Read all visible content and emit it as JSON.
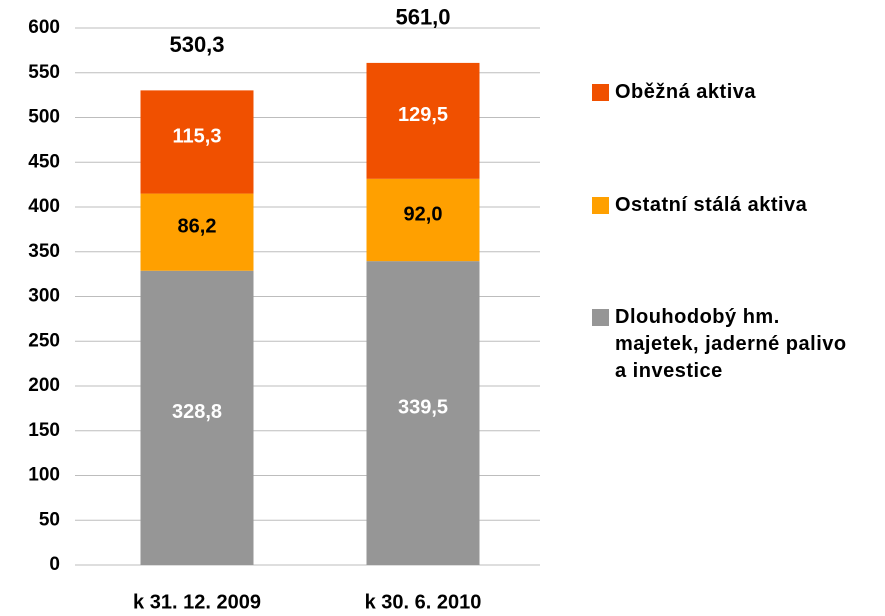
{
  "chart_data": {
    "type": "stacked_bar",
    "categories": [
      "k 31. 12. 2009",
      "k 30. 6. 2010"
    ],
    "series": [
      {
        "name": "Dlouhodobý hm. majetek, jaderné palivo a investice",
        "color": "#969696",
        "label_color": "#ffffff",
        "values": [
          328.8,
          339.5
        ],
        "value_labels": [
          "328,8",
          "339,5"
        ]
      },
      {
        "name": "Ostatní stálá aktiva",
        "color": "#ffa000",
        "label_color": "#000000",
        "values": [
          86.2,
          92.0
        ],
        "value_labels": [
          "86,2",
          "92,0"
        ]
      },
      {
        "name": "Oběžná aktiva",
        "color": "#f05000",
        "label_color": "#ffffff",
        "values": [
          115.3,
          129.5
        ],
        "value_labels": [
          "115,3",
          "129,5"
        ]
      }
    ],
    "totals": [
      530.3,
      561.0
    ],
    "total_labels": [
      "530,3",
      "561,0"
    ],
    "ylim": [
      0,
      600
    ],
    "yticks": [
      0,
      50,
      100,
      150,
      200,
      250,
      300,
      350,
      400,
      450,
      500,
      550,
      600
    ],
    "grid": true,
    "legend": "right"
  }
}
